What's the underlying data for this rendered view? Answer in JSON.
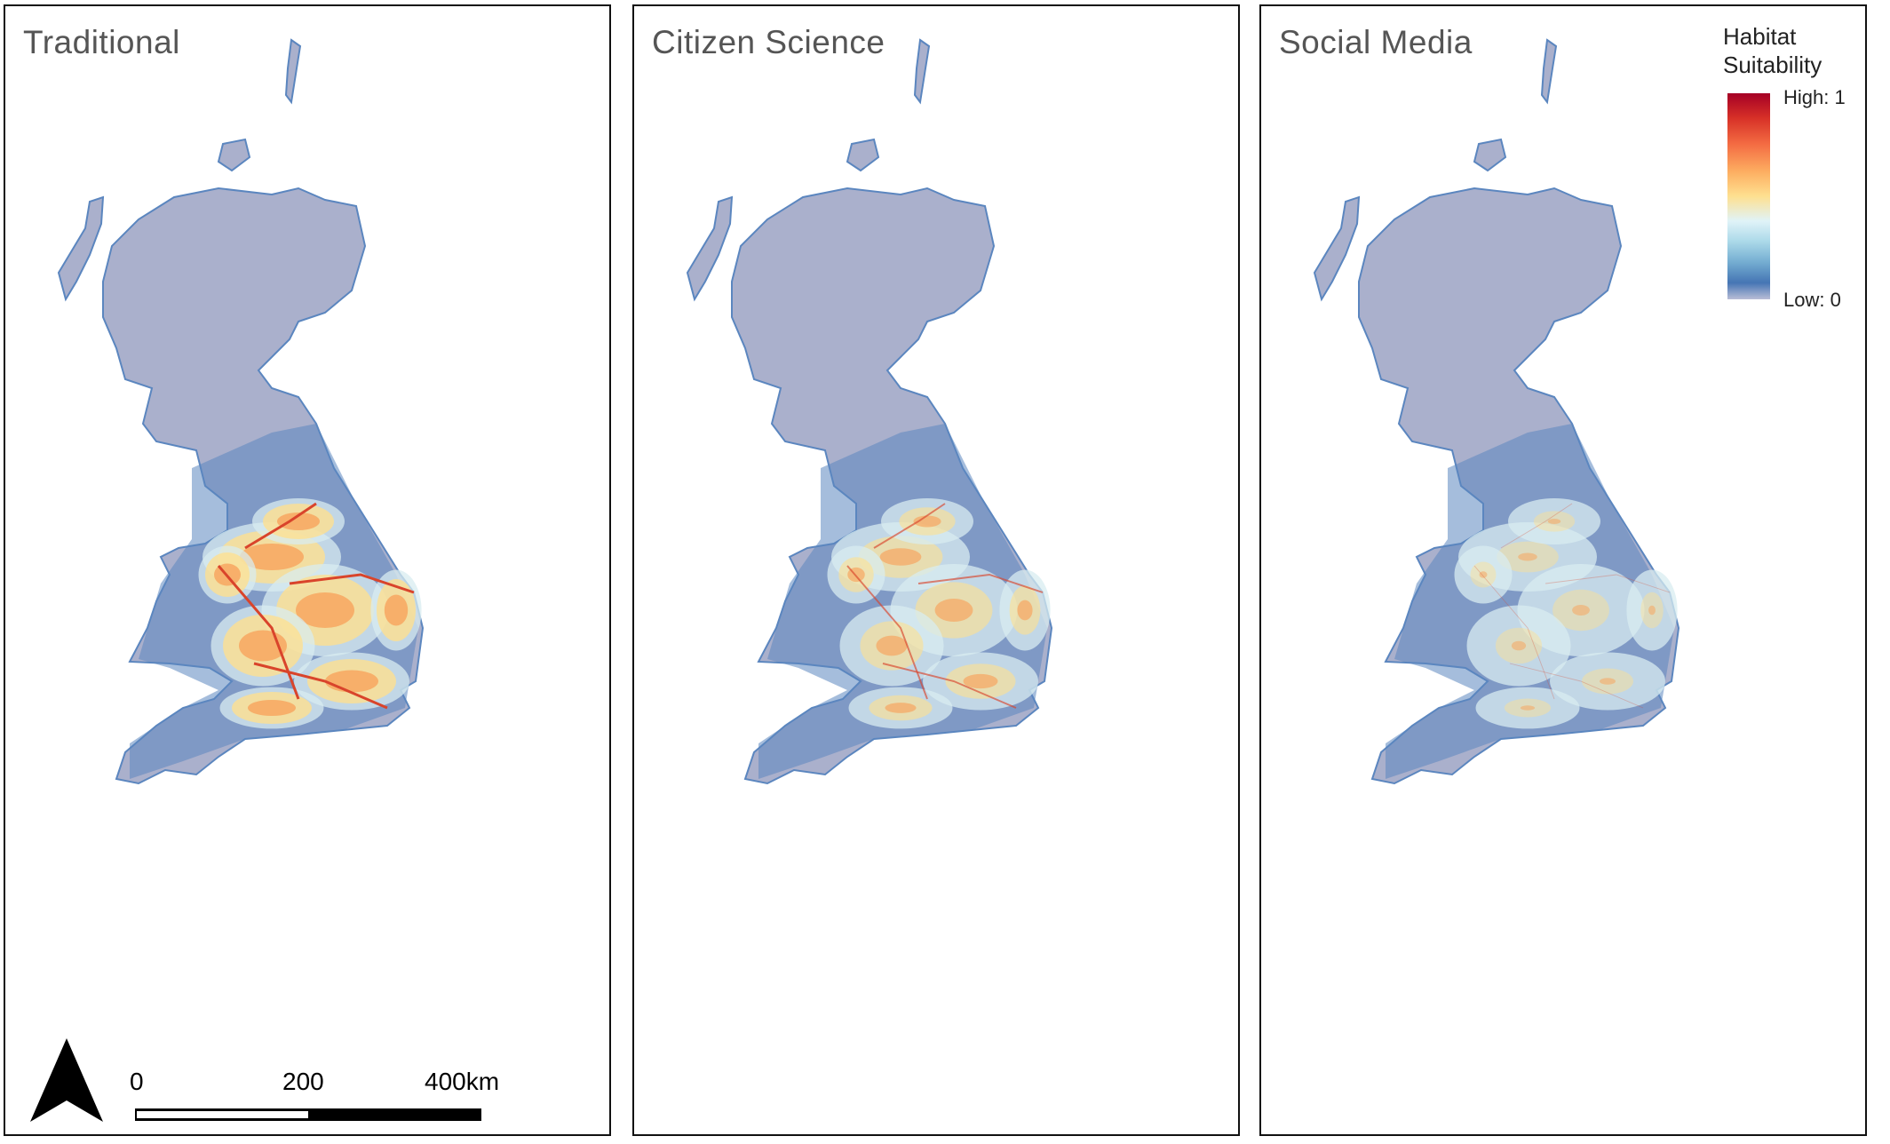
{
  "panels": [
    {
      "title": "Traditional",
      "intensity": 1.0
    },
    {
      "title": "Citizen Science",
      "intensity": 0.65
    },
    {
      "title": "Social Media",
      "intensity": 0.3
    }
  ],
  "legend": {
    "title_line1": "Habitat",
    "title_line2": "Suitability",
    "high_label": "High: 1",
    "low_label": "Low: 0",
    "colors": [
      "#a50026",
      "#d73027",
      "#f46d43",
      "#fdae61",
      "#fee090",
      "#e0f3f8",
      "#abd9e9",
      "#74add1",
      "#4575b4",
      "#b9bdd6"
    ]
  },
  "scale_bar": {
    "labels": [
      "0",
      "200",
      "400km"
    ]
  },
  "colors": {
    "low_land": "#aab0cc",
    "mid_blue": "#5b86bf",
    "light": "#d8ecf0",
    "yellow": "#fee090",
    "orange": "#f7a35c",
    "red": "#d9442b"
  }
}
